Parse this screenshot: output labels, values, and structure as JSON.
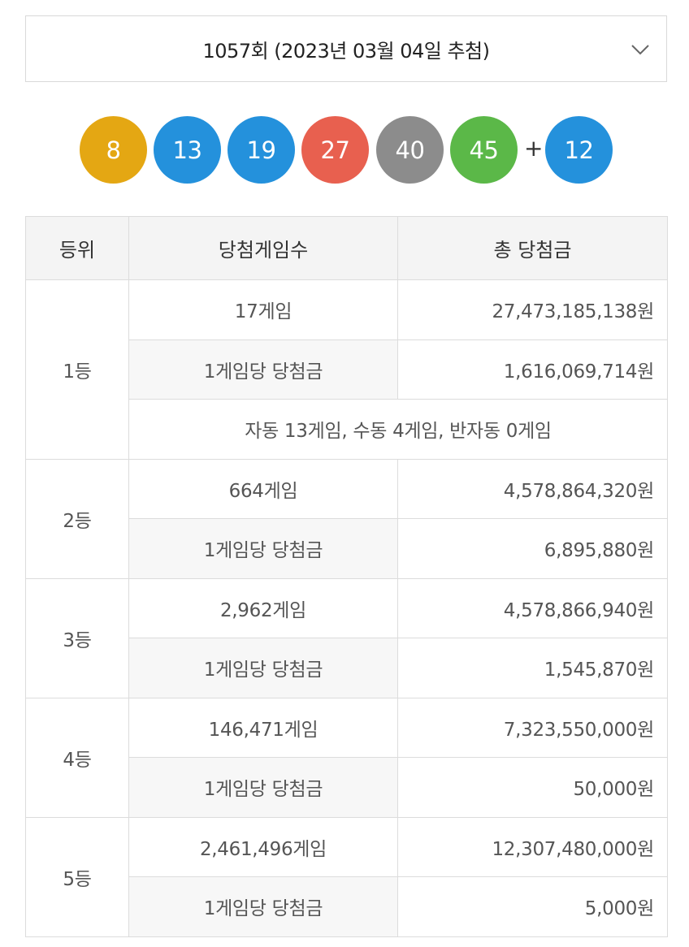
{
  "round_select": {
    "label": "1057회 (2023년 03월 04일 추첨)"
  },
  "balls": [
    {
      "number": "8",
      "color": "#e4a713"
    },
    {
      "number": "13",
      "color": "#2491dc"
    },
    {
      "number": "19",
      "color": "#2491dc"
    },
    {
      "number": "27",
      "color": "#e8604f"
    },
    {
      "number": "40",
      "color": "#8c8c8c"
    },
    {
      "number": "45",
      "color": "#5bb848"
    }
  ],
  "plus_sign": "+",
  "bonus_ball": {
    "number": "12",
    "color": "#2491dc"
  },
  "table": {
    "headers": {
      "rank": "등위",
      "games": "당첨게임수",
      "total": "총 당첨금"
    },
    "per_game_label": "1게임당 당첨금",
    "rows": [
      {
        "rank": "1등",
        "games": "17게임",
        "total": "27,473,185,138원",
        "per_game": "1,616,069,714원",
        "detail": "자동 13게임, 수동 4게임, 반자동 0게임"
      },
      {
        "rank": "2등",
        "games": "664게임",
        "total": "4,578,864,320원",
        "per_game": "6,895,880원"
      },
      {
        "rank": "3등",
        "games": "2,962게임",
        "total": "4,578,866,940원",
        "per_game": "1,545,870원"
      },
      {
        "rank": "4등",
        "games": "146,471게임",
        "total": "7,323,550,000원",
        "per_game": "50,000원"
      },
      {
        "rank": "5등",
        "games": "2,461,496게임",
        "total": "12,307,480,000원",
        "per_game": "5,000원"
      }
    ]
  }
}
